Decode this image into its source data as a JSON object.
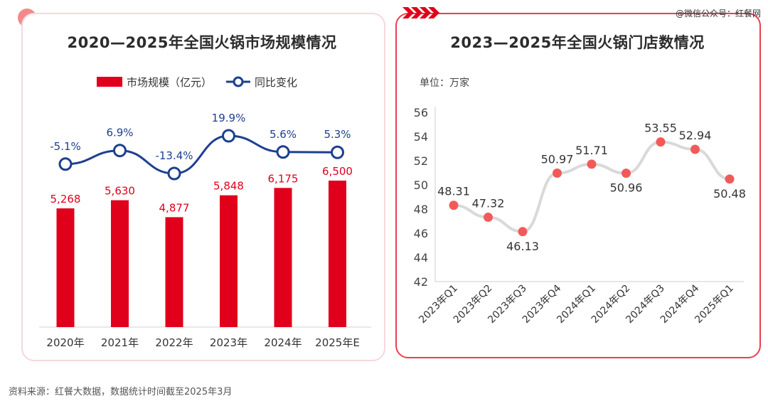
{
  "left_chart": {
    "title": "2020—2025年全国火锅市场规模情况",
    "legend_bar": "市场规模（亿元）",
    "legend_line": "同比变化",
    "bar_color": "#e0001b",
    "line_color": "#1e3f8f"
  },
  "right_chart": {
    "title": "2023—2025年全国火锅门店数情况",
    "unit": "单位：万家",
    "point_color": "#f25a5a",
    "line_color": "#d9d9d9"
  },
  "source_tag": "@微信公众号：红餐网",
  "footer": "资料来源：红餐大数据，数据统计时间截至2025年3月",
  "chart_data": [
    {
      "type": "bar",
      "title": "2020—2025年全国火锅市场规模情况",
      "categories": [
        "2020年",
        "2021年",
        "2022年",
        "2023年",
        "2024年",
        "2025年E"
      ],
      "series": [
        {
          "name": "市场规模（亿元）",
          "type": "bar",
          "values": [
            5268,
            5630,
            4877,
            5848,
            6175,
            6500
          ],
          "labels": [
            "5,268",
            "5,630",
            "4,877",
            "5,848",
            "6,175",
            "6,500"
          ]
        },
        {
          "name": "同比变化",
          "type": "line",
          "values": [
            -5.1,
            6.9,
            -13.4,
            19.9,
            5.6,
            5.3
          ],
          "labels": [
            "-5.1%",
            "6.9%",
            "-13.4%",
            "19.9%",
            "5.6%",
            "5.3%"
          ]
        }
      ],
      "legend": "top",
      "grid": false
    },
    {
      "type": "line",
      "title": "2023—2025年全国火锅门店数情况",
      "ylabel": "单位：万家",
      "categories": [
        "2023年Q1",
        "2023年Q2",
        "2023年Q3",
        "2023年Q4",
        "2024年Q1",
        "2024年Q2",
        "2024年Q3",
        "2024年Q4",
        "2025年Q1"
      ],
      "series": [
        {
          "values": [
            48.31,
            47.32,
            46.13,
            50.97,
            51.71,
            50.96,
            53.55,
            52.94,
            50.48
          ]
        }
      ],
      "ylim": [
        42,
        56
      ],
      "yticks": [
        42,
        44,
        46,
        48,
        50,
        52,
        54,
        56
      ],
      "grid": false
    }
  ]
}
